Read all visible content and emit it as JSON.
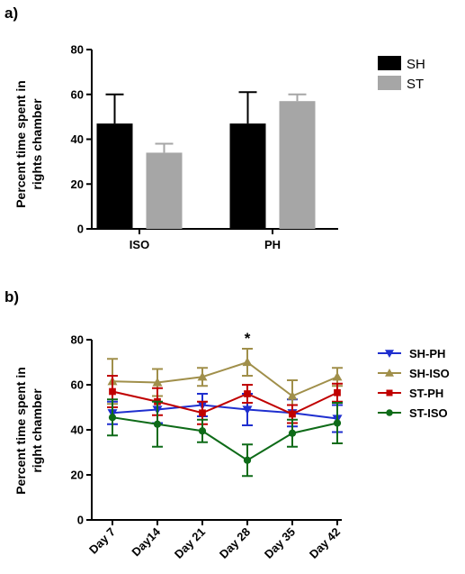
{
  "chart_data": [
    {
      "panel": "a)",
      "type": "bar",
      "categories": [
        "ISO",
        "PH"
      ],
      "ylabel_lines": [
        "Percent time spent in",
        "rights chamber"
      ],
      "ylim": [
        0,
        80
      ],
      "yticks": [
        0,
        20,
        40,
        60,
        80
      ],
      "legend_position": "top-right",
      "series": [
        {
          "name": "SH",
          "color": "#000000",
          "values": [
            47,
            47
          ],
          "errors": [
            13,
            14
          ]
        },
        {
          "name": "ST",
          "color": "#a6a6a6",
          "values": [
            34,
            57
          ],
          "errors": [
            4,
            3
          ]
        }
      ]
    },
    {
      "panel": "b)",
      "type": "line",
      "categories": [
        "Day 7",
        "Day14",
        "Day 21",
        "Day 28",
        "Day 35",
        "Day 42"
      ],
      "ylabel_lines": [
        "Percent time spent in",
        "right chamber"
      ],
      "ylim": [
        0,
        80
      ],
      "yticks": [
        0,
        20,
        40,
        60,
        80
      ],
      "legend_position": "right",
      "annotation": {
        "text": "*",
        "category_index": 3
      },
      "series": [
        {
          "name": "SH-PH",
          "color": "#1f2fcf",
          "marker": "triangle-down",
          "values": [
            47.5,
            49,
            51,
            49,
            47.5,
            45
          ],
          "errors": [
            5,
            6,
            5,
            7,
            6,
            6
          ]
        },
        {
          "name": "SH-ISO",
          "color": "#a08f4a",
          "marker": "triangle-up",
          "values": [
            61.5,
            61,
            63.5,
            70,
            55,
            63.5
          ],
          "errors": [
            10,
            6,
            4,
            6,
            7,
            4
          ]
        },
        {
          "name": "ST-PH",
          "color": "#c00000",
          "marker": "square",
          "values": [
            57,
            52.5,
            47.5,
            56,
            47,
            56.5
          ],
          "errors": [
            7,
            6,
            5,
            4,
            4,
            4
          ]
        },
        {
          "name": "ST-ISO",
          "color": "#0e6b18",
          "marker": "circle",
          "values": [
            45.5,
            42.5,
            39.5,
            26.5,
            38.5,
            43
          ],
          "errors": [
            8,
            10,
            5,
            7,
            6,
            9
          ]
        }
      ]
    }
  ]
}
